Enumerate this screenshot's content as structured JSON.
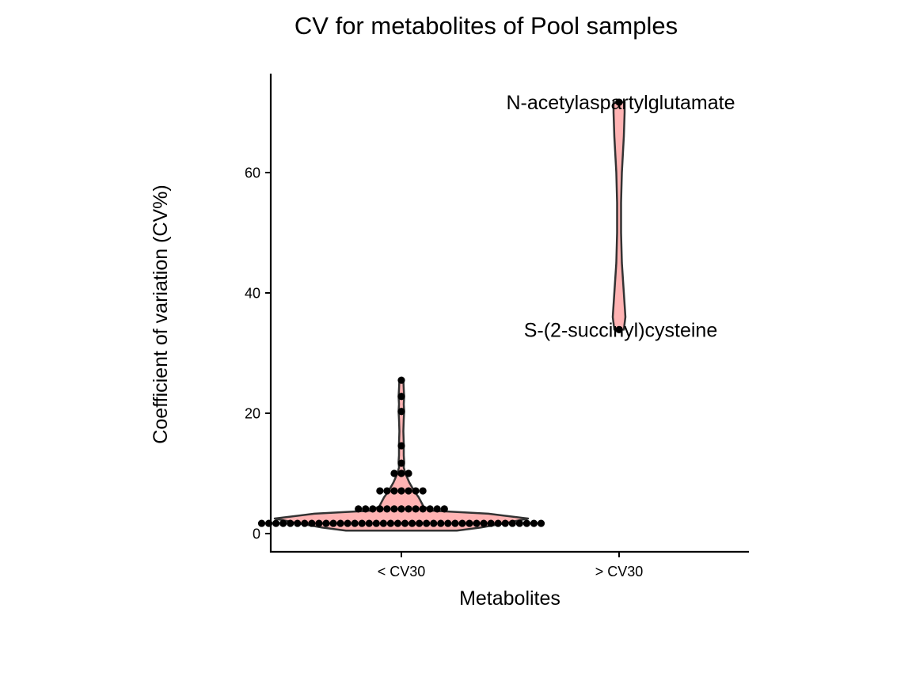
{
  "chart_data": {
    "type": "violin+dotplot",
    "title": "CV for metabolites of Pool samples",
    "xlabel": "Metabolites",
    "ylabel": "Coefficient of variation (CV%)",
    "ylim": [
      -3,
      76
    ],
    "yticks": [
      0,
      20,
      40,
      60
    ],
    "ytick_labels": [
      "0",
      "20",
      "40",
      "60"
    ],
    "categories": [
      "< CV30",
      "> CV30"
    ],
    "grid": false,
    "legend": "none",
    "colors": {
      "fill": "#FFB3B3",
      "outline": "#333333",
      "point": "#000000"
    },
    "groups": [
      {
        "category": "< CV30",
        "binned_points": [
          {
            "value": 1.7,
            "count": 40
          },
          {
            "value": 4.1,
            "count": 13
          },
          {
            "value": 7.1,
            "count": 7
          },
          {
            "value": 10.0,
            "count": 3
          },
          {
            "value": 11.7,
            "count": 1
          },
          {
            "value": 14.6,
            "count": 1
          },
          {
            "value": 20.3,
            "count": 1
          },
          {
            "value": 22.8,
            "count": 1
          },
          {
            "value": 25.5,
            "count": 1
          }
        ]
      },
      {
        "category": "> CV30",
        "binned_points": [
          {
            "value": 33.9,
            "count": 1
          },
          {
            "value": 71.7,
            "count": 1
          }
        ]
      }
    ],
    "annotations": [
      {
        "text": "N-acetylaspartylglutamate",
        "category": "> CV30",
        "value": 71.7
      },
      {
        "text": "S-(2-succinyl)cysteine",
        "category": "> CV30",
        "value": 33.9
      }
    ]
  }
}
